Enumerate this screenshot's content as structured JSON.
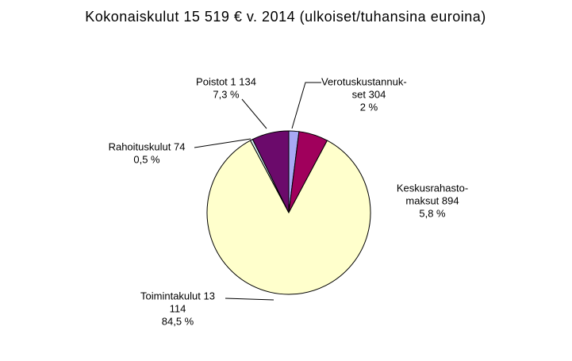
{
  "chart_data": {
    "type": "pie",
    "title": "Kokonaiskulut 15 519 € v. 2014 (ulkoiset/tuhansina euroina)",
    "categories": [
      [
        "Verotuskustannuk-",
        "set  304"
      ],
      [
        "Keskusrahasto-",
        "maksut 894"
      ],
      [
        "Toimintakulut 13",
        "114"
      ],
      [
        "Rahoituskulut 74"
      ],
      [
        "Poistot 1 134"
      ]
    ],
    "values": [
      2,
      5.8,
      84.5,
      0.5,
      7.3
    ],
    "value_labels": [
      "2 %",
      "5,8 %",
      "84,5  %",
      "0,5 %",
      "7,3 %"
    ],
    "colors": [
      "#a8a8f5",
      "#a0005c",
      "#ffffcc",
      "#d6f2f2",
      "#6b0a6b"
    ]
  }
}
